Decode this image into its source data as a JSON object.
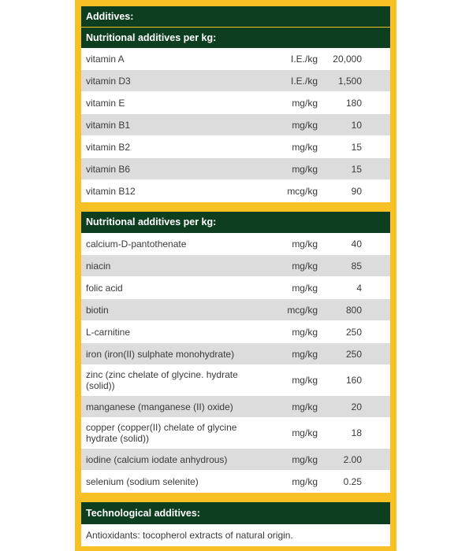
{
  "title": "Additives:",
  "section1": {
    "heading": "Nutritional additives per kg:",
    "rows": [
      {
        "name": "vitamin A",
        "unit": "I.E./kg",
        "value": "20,000"
      },
      {
        "name": "vitamin D3",
        "unit": "I.E./kg",
        "value": "1,500"
      },
      {
        "name": "vitamin E",
        "unit": "mg/kg",
        "value": "180"
      },
      {
        "name": "vitamin B1",
        "unit": "mg/kg",
        "value": "10"
      },
      {
        "name": "vitamin B2",
        "unit": "mg/kg",
        "value": "15"
      },
      {
        "name": "vitamin B6",
        "unit": "mg/kg",
        "value": "15"
      },
      {
        "name": "vitamin B12",
        "unit": "mcg/kg",
        "value": "90"
      }
    ]
  },
  "section2": {
    "heading": "Nutritional additives per kg:",
    "rows": [
      {
        "name": "calcium-D-pantothenate",
        "unit": "mg/kg",
        "value": "40"
      },
      {
        "name": "niacin",
        "unit": "mg/kg",
        "value": "85"
      },
      {
        "name": "folic acid",
        "unit": "mg/kg",
        "value": "4"
      },
      {
        "name": "biotin",
        "unit": "mcg/kg",
        "value": "800"
      },
      {
        "name": "L-carnitine",
        "unit": "mg/kg",
        "value": "250"
      },
      {
        "name": "iron (iron(II) sulphate monohydrate)",
        "unit": "mg/kg",
        "value": "250"
      },
      {
        "name": "zinc (zinc chelate of glycine. hydrate (solid))",
        "unit": "mg/kg",
        "value": "160"
      },
      {
        "name": "manganese (manganese (II) oxide)",
        "unit": "mg/kg",
        "value": "20"
      },
      {
        "name": "copper (copper(II) chelate of glycine hydrate (solid))",
        "unit": "mg/kg",
        "value": "18"
      },
      {
        "name": "iodine (calcium iodate anhydrous)",
        "unit": "mg/kg",
        "value": "2.00"
      },
      {
        "name": "selenium (sodium selenite)",
        "unit": "mg/kg",
        "value": "0.25"
      }
    ]
  },
  "technological": {
    "heading": "Technological additives:",
    "text": "Antioxidants: tocopherol extracts of natural origin."
  }
}
